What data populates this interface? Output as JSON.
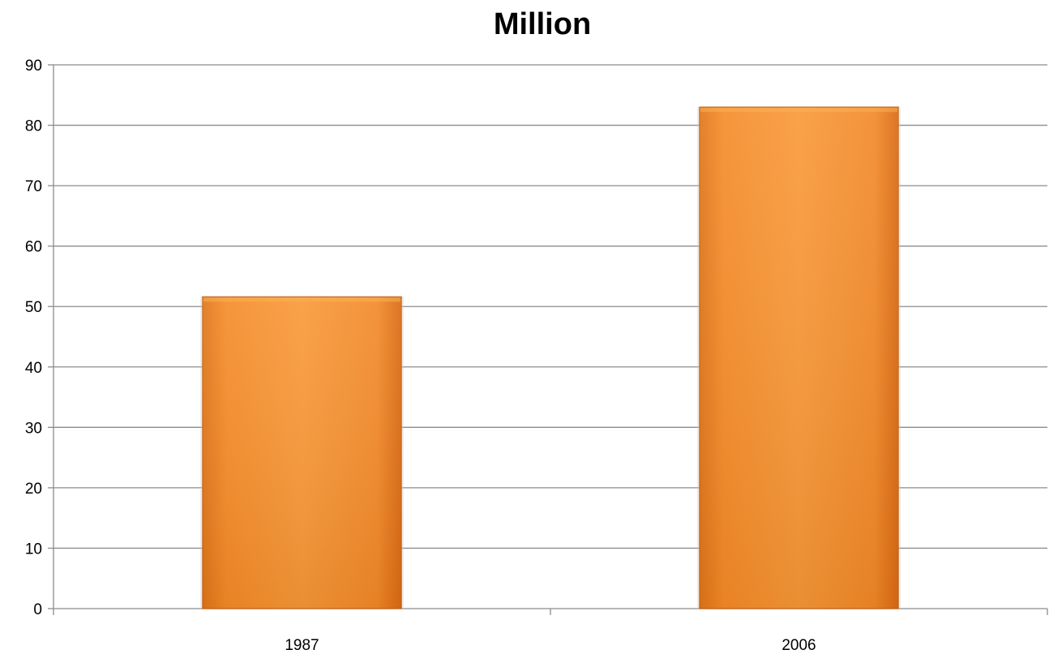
{
  "chart_data": {
    "type": "bar",
    "title": "Million",
    "categories": [
      "1987",
      "2006"
    ],
    "values": [
      51.6,
      83
    ],
    "xlabel": "",
    "ylabel": "",
    "ylim": [
      0,
      90
    ],
    "yticks": [
      0,
      10,
      20,
      30,
      40,
      50,
      60,
      70,
      80,
      90
    ],
    "grid": true,
    "legend": "none",
    "bar_color": "#F7931E",
    "bar_color_dark": "#D66B12"
  }
}
